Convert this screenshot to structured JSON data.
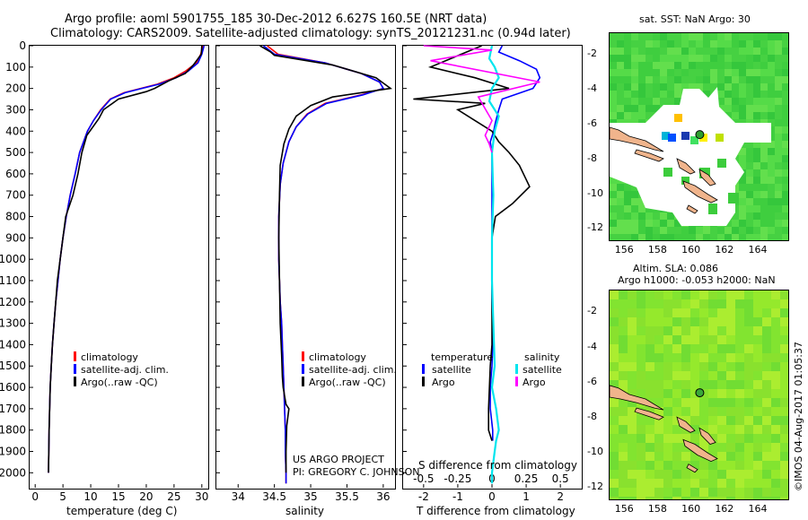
{
  "header": {
    "line1": "Argo profile: aoml 5901755_185 30-Dec-2012 6.627S 160.5E (NRT data)",
    "line2": "Climatology: CARS2009. Satellite-adjusted climatology: synTS_20121231.nc (0.94d later)"
  },
  "chart_data": [
    {
      "type": "line",
      "panel": "temperature",
      "xlabel": "temperature (deg C)",
      "ylabel": "",
      "xlim": [
        -1,
        31
      ],
      "ylim": [
        2070,
        0
      ],
      "xticks": [
        "0",
        "5",
        "10",
        "15",
        "20",
        "25",
        "30"
      ],
      "xtick_values": [
        0,
        5,
        10,
        15,
        20,
        25,
        30
      ],
      "yticks": [
        "0",
        "100",
        "200",
        "300",
        "400",
        "500",
        "600",
        "700",
        "800",
        "900",
        "1000",
        "1100",
        "1200",
        "1300",
        "1400",
        "1500",
        "1600",
        "1700",
        "1800",
        "1900",
        "2000"
      ],
      "ytick_values": [
        0,
        100,
        200,
        300,
        400,
        500,
        600,
        700,
        800,
        900,
        1000,
        1100,
        1200,
        1300,
        1400,
        1500,
        1600,
        1700,
        1800,
        1900,
        2000
      ],
      "series": [
        {
          "name": "climatology",
          "color": "#ff0000",
          "x": [
            30.2,
            29.8,
            29.0,
            27.0,
            25.0,
            22.0,
            19.0,
            16.0,
            13.5,
            11.8,
            10.5,
            9.4,
            8.0,
            7.2,
            6.3,
            5.6,
            5.0,
            4.5,
            4.1,
            3.7,
            3.4,
            3.1,
            2.9,
            2.7,
            2.6,
            2.5,
            2.4
          ],
          "y": [
            0,
            40,
            80,
            120,
            150,
            180,
            200,
            220,
            250,
            300,
            350,
            400,
            500,
            600,
            700,
            800,
            900,
            1000,
            1100,
            1200,
            1300,
            1400,
            1500,
            1600,
            1700,
            1800,
            2000
          ]
        },
        {
          "name": "satellite-adj. clim.",
          "color": "#0000ff",
          "x": [
            30.4,
            30.0,
            29.3,
            27.5,
            25.4,
            22.3,
            19.2,
            16.2,
            13.6,
            11.9,
            10.5,
            9.4,
            8.0,
            7.2,
            6.3,
            5.6,
            5.0,
            4.5,
            4.1,
            3.7,
            3.4,
            3.1,
            2.9,
            2.7,
            2.6,
            2.5,
            2.4
          ],
          "y": [
            0,
            40,
            80,
            120,
            150,
            180,
            200,
            220,
            250,
            300,
            350,
            400,
            500,
            600,
            700,
            800,
            900,
            1000,
            1100,
            1200,
            1300,
            1400,
            1500,
            1600,
            1700,
            1800,
            2000
          ]
        },
        {
          "name": "Argo(..raw -QC)",
          "color": "#000000",
          "x": [
            30.0,
            29.9,
            28.5,
            27.0,
            24.0,
            21.5,
            20.0,
            15.0,
            12.3,
            11.5,
            10.4,
            9.3,
            8.4,
            7.7,
            6.8,
            5.5,
            5.0,
            4.5,
            4.0,
            3.7,
            3.4,
            3.1,
            2.9,
            2.7,
            2.6,
            2.5,
            2.4
          ],
          "y": [
            0,
            40,
            90,
            130,
            165,
            200,
            215,
            250,
            300,
            340,
            380,
            420,
            500,
            600,
            700,
            800,
            900,
            1000,
            1100,
            1200,
            1300,
            1400,
            1500,
            1600,
            1700,
            1800,
            2000
          ]
        }
      ],
      "legend": [
        "climatology",
        "satellite-adj. clim.",
        "Argo(..raw -QC)"
      ]
    },
    {
      "type": "line",
      "panel": "salinity",
      "xlabel": "salinity",
      "xlim": [
        33.7,
        36.15
      ],
      "ylim": [
        2070,
        0
      ],
      "xticks": [
        "34",
        "34.5",
        "35",
        "35.5",
        "36"
      ],
      "xtick_values": [
        34,
        34.5,
        35,
        35.5,
        36
      ],
      "series": [
        {
          "name": "climatology",
          "color": "#ff0000",
          "x": [
            34.4,
            34.55,
            35.2,
            35.7,
            35.95,
            36.0,
            35.7,
            35.2,
            34.95,
            34.8,
            34.7,
            34.62,
            34.58,
            34.56,
            34.56,
            34.57,
            34.58,
            34.6,
            34.61,
            34.62,
            34.63,
            34.64,
            34.65,
            34.65,
            34.66,
            34.66
          ],
          "y": [
            0,
            40,
            80,
            130,
            170,
            200,
            230,
            270,
            320,
            380,
            450,
            550,
            650,
            800,
            1000,
            1100,
            1200,
            1300,
            1400,
            1500,
            1600,
            1700,
            1800,
            1900,
            2000,
            2050
          ]
        },
        {
          "name": "satellite-adj. clim.",
          "color": "#0000ff",
          "x": [
            34.35,
            34.5,
            35.2,
            35.7,
            35.95,
            36.0,
            35.72,
            35.22,
            34.96,
            34.8,
            34.7,
            34.62,
            34.58,
            34.56,
            34.56,
            34.57,
            34.58,
            34.6,
            34.61,
            34.62,
            34.63,
            34.64,
            34.65,
            34.65,
            34.66,
            34.66
          ],
          "y": [
            0,
            40,
            80,
            130,
            170,
            200,
            230,
            270,
            320,
            380,
            450,
            550,
            650,
            800,
            1000,
            1100,
            1200,
            1300,
            1400,
            1500,
            1600,
            1700,
            1800,
            1900,
            2000,
            2050
          ]
        },
        {
          "name": "Argo(..raw -QC)",
          "color": "#000000",
          "x": [
            34.3,
            34.45,
            34.5,
            35.3,
            35.9,
            36.1,
            35.3,
            35.0,
            34.8,
            34.7,
            34.63,
            34.58,
            34.57,
            34.56,
            34.57,
            34.58,
            34.6,
            34.61,
            34.62,
            34.66,
            34.7,
            34.67,
            34.66,
            34.66
          ],
          "y": [
            0,
            30,
            45,
            90,
            150,
            200,
            240,
            280,
            330,
            390,
            460,
            560,
            700,
            900,
            1100,
            1300,
            1450,
            1550,
            1600,
            1680,
            1700,
            1780,
            1900,
            2000
          ]
        }
      ],
      "legend": [
        "climatology",
        "satellite-adj. clim.",
        "Argo(..raw -QC)"
      ],
      "annotation": [
        "US ARGO PROJECT",
        "PI: GREGORY C. JOHNSON"
      ]
    },
    {
      "type": "line",
      "panel": "differences",
      "xlabel_top": "S difference from climatology",
      "xlabel": "T difference from climatology",
      "xlim_T": [
        -2.6,
        2.6
      ],
      "xticks_T": [
        "-2",
        "-1",
        "0",
        "1",
        "2"
      ],
      "xtick_values_T": [
        -2,
        -1,
        0,
        1,
        2
      ],
      "xlim_S": [
        -0.65,
        0.65
      ],
      "xticks_S": [
        "-0.5",
        "-0.25",
        "0",
        "0.25",
        "0.5"
      ],
      "xtick_values_S": [
        -0.5,
        -0.25,
        0,
        0.25,
        0.5
      ],
      "ylim": [
        2070,
        0
      ],
      "series": [
        {
          "name": "temperature satellite",
          "color": "#0000ff",
          "axis": "T",
          "x": [
            0.3,
            0.2,
            0.8,
            1.3,
            1.4,
            1.2,
            0.3,
            0.2,
            0.1,
            0.05,
            -0.05,
            0,
            0,
            0,
            0,
            0,
            0.02,
            0,
            -0.05,
            -0.05,
            0.02,
            0.02
          ],
          "y": [
            0,
            30,
            70,
            110,
            150,
            200,
            250,
            300,
            360,
            400,
            450,
            500,
            600,
            800,
            1000,
            1200,
            1400,
            1500,
            1600,
            1700,
            1800,
            1850
          ]
        },
        {
          "name": "temperature Argo",
          "color": "#000000",
          "axis": "T",
          "x": [
            -0.3,
            -1.8,
            -0.5,
            0.5,
            -2.3,
            -0.2,
            -1.0,
            -0.5,
            0.0,
            0.2,
            0.5,
            0.8,
            1.1,
            0.6,
            0.1,
            0,
            0,
            0,
            -0.05,
            -0.1,
            -0.1,
            0
          ],
          "y": [
            0,
            100,
            150,
            200,
            250,
            270,
            300,
            350,
            400,
            450,
            500,
            560,
            660,
            740,
            800,
            900,
            1100,
            1400,
            1500,
            1700,
            1800,
            1850
          ]
        },
        {
          "name": "salinity satellite",
          "color": "#00e5ee",
          "axis": "S",
          "x": [
            0.0,
            -0.02,
            0.02,
            0.05,
            0.0,
            -0.02,
            0.05,
            0.02,
            0.0,
            0.01,
            0.0,
            0.0,
            0.01,
            0.02,
            0.0,
            0.03,
            0.05,
            0.03,
            0.02,
            0.0,
            0.0
          ],
          "y": [
            0,
            60,
            100,
            150,
            200,
            260,
            330,
            400,
            500,
            700,
            900,
            1100,
            1300,
            1500,
            1600,
            1700,
            1800,
            1850,
            1900,
            2000,
            2050
          ]
        },
        {
          "name": "salinity Argo",
          "color": "#ff00ff",
          "axis": "S",
          "x": [
            -0.5,
            0.0,
            -0.45,
            0.35,
            -0.1,
            0.0,
            -0.05,
            -0.02,
            0.0
          ],
          "y": [
            0,
            20,
            70,
            170,
            240,
            350,
            420,
            460,
            500
          ]
        }
      ],
      "legend_temperature": {
        "header": "temperature",
        "items": [
          "satellite",
          "Argo"
        ]
      },
      "legend_salinity": {
        "header": "salinity",
        "items": [
          "satellite",
          "Argo"
        ]
      }
    },
    {
      "type": "heatmap",
      "panel": "sst-map",
      "title": "sat. SST: NaN Argo: 30",
      "xticks": [
        "156",
        "158",
        "160",
        "162",
        "164"
      ],
      "yticks": [
        "-2",
        "-4",
        "-6",
        "-8",
        "-10",
        "-12"
      ],
      "float_position": {
        "lon": 160.5,
        "lat": -6.627
      }
    },
    {
      "type": "heatmap",
      "panel": "sla-map",
      "title_line1": "Altim. SLA: 0.086",
      "title_line2": "Argo h1000: -0.053 h2000: NaN",
      "xticks": [
        "156",
        "158",
        "160",
        "162",
        "164"
      ],
      "yticks": [
        "-2",
        "-4",
        "-6",
        "-8",
        "-10",
        "-12"
      ],
      "float_position": {
        "lon": 160.5,
        "lat": -6.627
      }
    }
  ],
  "credit": "©IMOS 04-Aug-2017 01:05:37",
  "colors": {
    "climatology": "#ff0000",
    "satellite": "#0000ff",
    "argo": "#000000",
    "sal_satellite": "#00e5ee",
    "sal_argo": "#ff00ff",
    "land": "#f0b48c"
  }
}
